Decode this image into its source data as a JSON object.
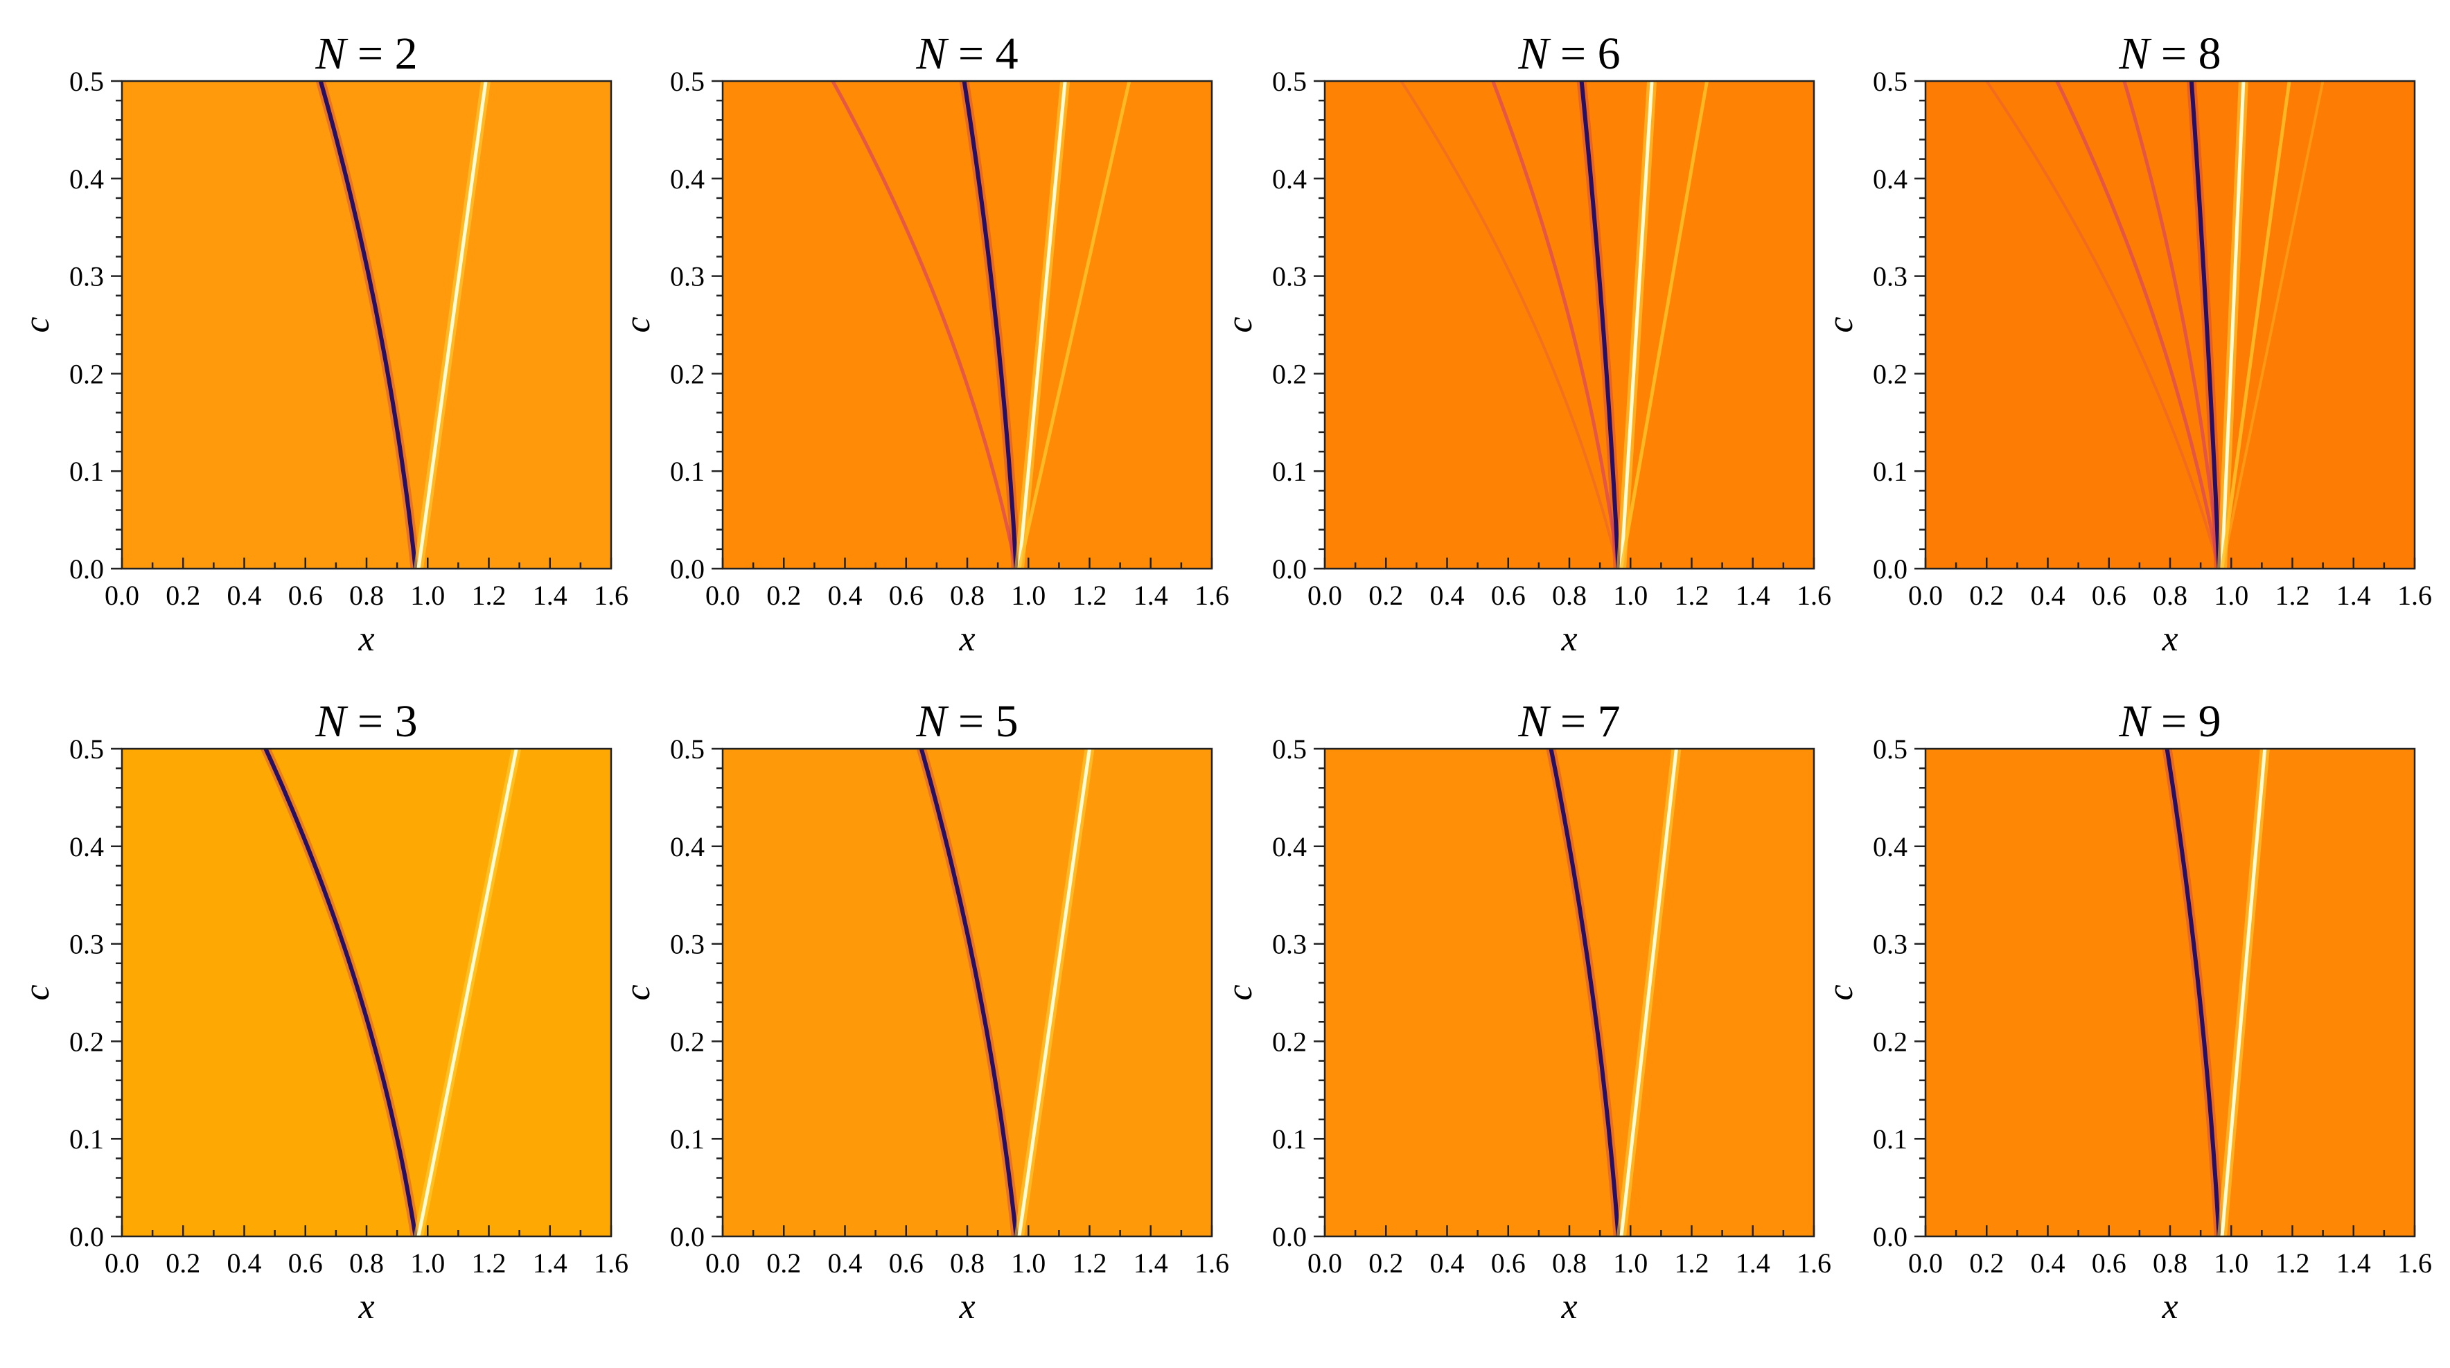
{
  "chart_data": [
    {
      "type": "heatmap",
      "title_var": "N",
      "title_eq": " = ",
      "title_val": "2",
      "xlabel": "x",
      "ylabel": "c",
      "xlim": [
        0,
        1.6
      ],
      "ylim": [
        0,
        0.5
      ],
      "xticks": [
        "0.0",
        "0.2",
        "0.4",
        "0.6",
        "0.8",
        "1.0",
        "1.2",
        "1.4",
        "1.6"
      ],
      "yticks": [
        "0.0",
        "0.1",
        "0.2",
        "0.3",
        "0.4",
        "0.5"
      ],
      "background": "#fe9a0c",
      "curves": [
        {
          "kind": "dark",
          "x_at_c0": 0.96,
          "x_at_c05": 0.65,
          "bow": 0.035
        },
        {
          "kind": "bright",
          "x_at_c0": 0.97,
          "x_at_c05": 1.19,
          "bow": 0
        }
      ]
    },
    {
      "type": "heatmap",
      "title_var": "N",
      "title_eq": " = ",
      "title_val": "4",
      "xlabel": "x",
      "ylabel": "c",
      "xlim": [
        0,
        1.6
      ],
      "ylim": [
        0,
        0.5
      ],
      "xticks": [
        "0.0",
        "0.2",
        "0.4",
        "0.6",
        "0.8",
        "1.0",
        "1.2",
        "1.4",
        "1.6"
      ],
      "yticks": [
        "0.0",
        "0.1",
        "0.2",
        "0.3",
        "0.4",
        "0.5"
      ],
      "background": "#fe8a05",
      "curves": [
        {
          "kind": "faint-dark",
          "x_at_c0": 0.96,
          "x_at_c05": 0.36,
          "bow": 0.07
        },
        {
          "kind": "dark",
          "x_at_c0": 0.96,
          "x_at_c05": 0.79,
          "bow": 0.02
        },
        {
          "kind": "bright",
          "x_at_c0": 0.97,
          "x_at_c05": 1.12,
          "bow": 0
        },
        {
          "kind": "faint-bright",
          "x_at_c0": 0.97,
          "x_at_c05": 1.33,
          "bow": 0
        }
      ]
    },
    {
      "type": "heatmap",
      "title_var": "N",
      "title_eq": " = ",
      "title_val": "6",
      "xlabel": "x",
      "ylabel": "c",
      "xlim": [
        0,
        1.6
      ],
      "ylim": [
        0,
        0.5
      ],
      "xticks": [
        "0.0",
        "0.2",
        "0.4",
        "0.6",
        "0.8",
        "1.0",
        "1.2",
        "1.4",
        "1.6"
      ],
      "yticks": [
        "0.0",
        "0.1",
        "0.2",
        "0.3",
        "0.4",
        "0.5"
      ],
      "background": "#fe8304",
      "curves": [
        {
          "kind": "faintest-dark",
          "x_at_c0": 0.96,
          "x_at_c05": 0.25,
          "bow": 0.08
        },
        {
          "kind": "faint-dark",
          "x_at_c0": 0.96,
          "x_at_c05": 0.55,
          "bow": 0.05
        },
        {
          "kind": "dark",
          "x_at_c0": 0.96,
          "x_at_c05": 0.84,
          "bow": 0.01
        },
        {
          "kind": "bright",
          "x_at_c0": 0.97,
          "x_at_c05": 1.07,
          "bow": 0
        },
        {
          "kind": "faint-bright",
          "x_at_c0": 0.97,
          "x_at_c05": 1.25,
          "bow": 0
        }
      ]
    },
    {
      "type": "heatmap",
      "title_var": "N",
      "title_eq": " = ",
      "title_val": "8",
      "xlabel": "x",
      "ylabel": "c",
      "xlim": [
        0,
        1.6
      ],
      "ylim": [
        0,
        0.5
      ],
      "xticks": [
        "0.0",
        "0.2",
        "0.4",
        "0.6",
        "0.8",
        "1.0",
        "1.2",
        "1.4",
        "1.6"
      ],
      "yticks": [
        "0.0",
        "0.1",
        "0.2",
        "0.3",
        "0.4",
        "0.5"
      ],
      "background": "#fd7c04",
      "curves": [
        {
          "kind": "faintest-dark",
          "x_at_c0": 0.96,
          "x_at_c05": 0.2,
          "bow": 0.08
        },
        {
          "kind": "faint-dark",
          "x_at_c0": 0.96,
          "x_at_c05": 0.43,
          "bow": 0.06
        },
        {
          "kind": "faint-dark",
          "x_at_c0": 0.96,
          "x_at_c05": 0.65,
          "bow": 0.04
        },
        {
          "kind": "dark",
          "x_at_c0": 0.96,
          "x_at_c05": 0.87,
          "bow": 0.005
        },
        {
          "kind": "bright",
          "x_at_c0": 0.97,
          "x_at_c05": 1.04,
          "bow": 0
        },
        {
          "kind": "faint-bright",
          "x_at_c0": 0.97,
          "x_at_c05": 1.19,
          "bow": 0
        },
        {
          "kind": "faintest-bright",
          "x_at_c0": 0.97,
          "x_at_c05": 1.3,
          "bow": 0
        }
      ]
    },
    {
      "type": "heatmap",
      "title_var": "N",
      "title_eq": " = ",
      "title_val": "3",
      "xlabel": "x",
      "ylabel": "c",
      "xlim": [
        0,
        1.6
      ],
      "ylim": [
        0,
        0.5
      ],
      "xticks": [
        "0.0",
        "0.2",
        "0.4",
        "0.6",
        "0.8",
        "1.0",
        "1.2",
        "1.4",
        "1.6"
      ],
      "yticks": [
        "0.0",
        "0.1",
        "0.2",
        "0.3",
        "0.4",
        "0.5"
      ],
      "background": "#fea803",
      "curves": [
        {
          "kind": "dark",
          "x_at_c0": 0.96,
          "x_at_c05": 0.47,
          "bow": 0.06
        },
        {
          "kind": "bright",
          "x_at_c0": 0.97,
          "x_at_c05": 1.29,
          "bow": 0
        }
      ]
    },
    {
      "type": "heatmap",
      "title_var": "N",
      "title_eq": " = ",
      "title_val": "5",
      "xlabel": "x",
      "ylabel": "c",
      "xlim": [
        0,
        1.6
      ],
      "ylim": [
        0,
        0.5
      ],
      "xticks": [
        "0.0",
        "0.2",
        "0.4",
        "0.6",
        "0.8",
        "1.0",
        "1.2",
        "1.4",
        "1.6"
      ],
      "yticks": [
        "0.0",
        "0.1",
        "0.2",
        "0.3",
        "0.4",
        "0.5"
      ],
      "background": "#fe9a0a",
      "curves": [
        {
          "kind": "dark",
          "x_at_c0": 0.96,
          "x_at_c05": 0.65,
          "bow": 0.035
        },
        {
          "kind": "bright",
          "x_at_c0": 0.97,
          "x_at_c05": 1.2,
          "bow": 0
        }
      ]
    },
    {
      "type": "heatmap",
      "title_var": "N",
      "title_eq": " = ",
      "title_val": "7",
      "xlabel": "x",
      "ylabel": "c",
      "xlim": [
        0,
        1.6
      ],
      "ylim": [
        0,
        0.5
      ],
      "xticks": [
        "0.0",
        "0.2",
        "0.4",
        "0.6",
        "0.8",
        "1.0",
        "1.2",
        "1.4",
        "1.6"
      ],
      "yticks": [
        "0.0",
        "0.1",
        "0.2",
        "0.3",
        "0.4",
        "0.5"
      ],
      "background": "#fe8f06",
      "curves": [
        {
          "kind": "dark",
          "x_at_c0": 0.96,
          "x_at_c05": 0.74,
          "bow": 0.025
        },
        {
          "kind": "bright",
          "x_at_c0": 0.97,
          "x_at_c05": 1.15,
          "bow": 0
        }
      ]
    },
    {
      "type": "heatmap",
      "title_var": "N",
      "title_eq": " = ",
      "title_val": "9",
      "xlabel": "x",
      "ylabel": "c",
      "xlim": [
        0,
        1.6
      ],
      "ylim": [
        0,
        0.5
      ],
      "xticks": [
        "0.0",
        "0.2",
        "0.4",
        "0.6",
        "0.8",
        "1.0",
        "1.2",
        "1.4",
        "1.6"
      ],
      "yticks": [
        "0.0",
        "0.1",
        "0.2",
        "0.3",
        "0.4",
        "0.5"
      ],
      "background": "#fe8805",
      "curves": [
        {
          "kind": "dark",
          "x_at_c0": 0.96,
          "x_at_c05": 0.79,
          "bow": 0.02
        },
        {
          "kind": "bright",
          "x_at_c0": 0.97,
          "x_at_c05": 1.11,
          "bow": 0
        }
      ]
    }
  ],
  "colors": {
    "dark": "#2a0f5e",
    "dark_glow": "#c0305a",
    "faint_dark": "#e0504e",
    "bright": "#fffbd0",
    "bright_glow": "#ffd23a",
    "faint_bright": "#ffc12a"
  }
}
